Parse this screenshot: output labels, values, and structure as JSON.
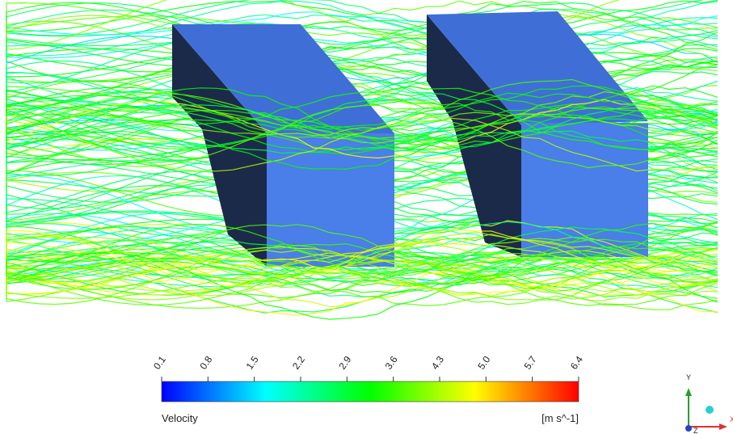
{
  "legend": {
    "title": "Velocity",
    "units": "[m s^-1]",
    "ticks": [
      "0.1",
      "0.8",
      "1.5",
      "2.2",
      "2.9",
      "3.6",
      "4.3",
      "5.0",
      "5.7",
      "6.4"
    ]
  },
  "triad": {
    "y": "Y",
    "x": "X",
    "z": "Z"
  }
}
